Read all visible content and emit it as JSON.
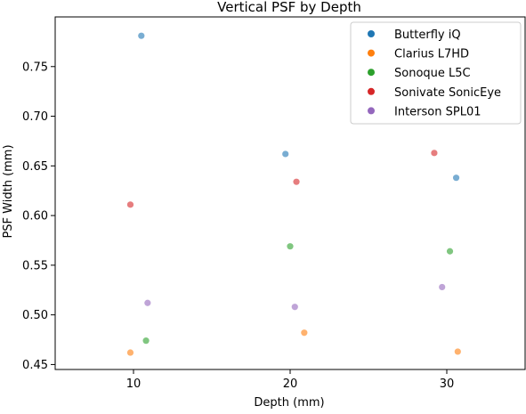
{
  "chart_data": {
    "type": "scatter",
    "title": "Vertical PSF by Depth",
    "xlabel": "Depth (mm)",
    "ylabel": "PSF Width (mm)",
    "xlim": [
      5,
      35
    ],
    "ylim": [
      0.445,
      0.8
    ],
    "x_ticks": [
      10,
      20,
      30
    ],
    "y_ticks": [
      0.45,
      0.5,
      0.55,
      0.6,
      0.65,
      0.7,
      0.75
    ],
    "x_tick_labels": [
      "10",
      "20",
      "30"
    ],
    "y_tick_labels": [
      "0.45",
      "0.50",
      "0.55",
      "0.60",
      "0.65",
      "0.70",
      "0.75"
    ],
    "grid": false,
    "legend_position": "top-right",
    "series": [
      {
        "name": "Butterfly iQ",
        "color": "#1f77b4",
        "points": [
          [
            10.5,
            0.781
          ],
          [
            19.7,
            0.662
          ],
          [
            30.6,
            0.638
          ]
        ]
      },
      {
        "name": "Clarius L7HD",
        "color": "#ff7f0e",
        "points": [
          [
            9.8,
            0.462
          ],
          [
            20.9,
            0.482
          ],
          [
            30.7,
            0.463
          ]
        ]
      },
      {
        "name": "Sonoque L5C",
        "color": "#2ca02c",
        "points": [
          [
            10.8,
            0.474
          ],
          [
            20.0,
            0.569
          ],
          [
            30.2,
            0.564
          ]
        ]
      },
      {
        "name": "Sonivate SonicEye",
        "color": "#d62728",
        "points": [
          [
            9.8,
            0.611
          ],
          [
            20.4,
            0.634
          ],
          [
            29.2,
            0.663
          ]
        ]
      },
      {
        "name": "Interson SPL01",
        "color": "#9467bd",
        "points": [
          [
            10.9,
            0.512
          ],
          [
            20.3,
            0.508
          ],
          [
            29.7,
            0.528
          ]
        ]
      }
    ]
  }
}
